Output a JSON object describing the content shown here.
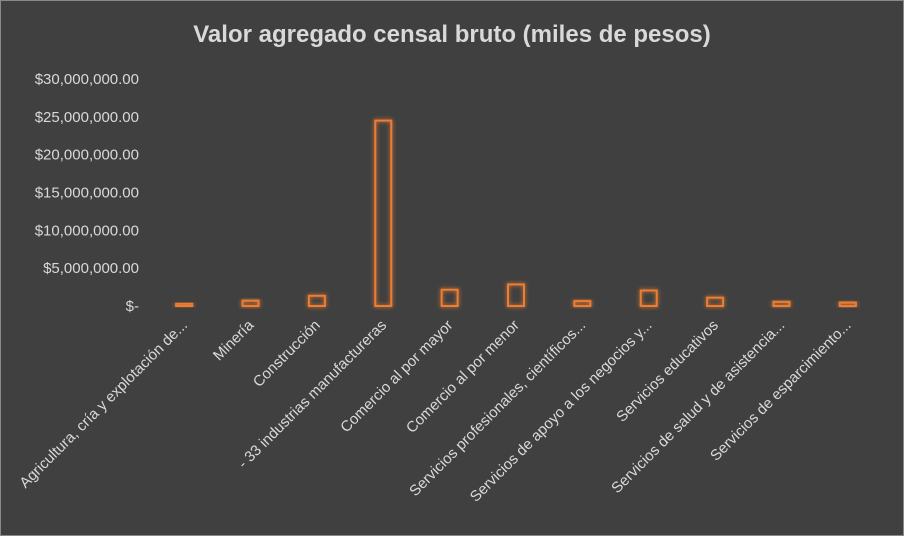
{
  "chart_data": {
    "type": "bar",
    "title": "Valor agregado censal bruto (miles de pesos)",
    "xlabel": "",
    "ylabel": "",
    "ylim": [
      0,
      30000000
    ],
    "y_ticks": [
      "$-",
      "$5,000,000.00",
      "$10,000,000.00",
      "$15,000,000.00",
      "$20,000,000.00",
      "$25,000,000.00",
      "$30,000,000.00"
    ],
    "categories": [
      "Agricultura, cría y explotación de...",
      "Minería",
      "Construcción",
      "- 33 industrias manufactureras",
      "Comercio al por mayor",
      "Comercio al por menor",
      "Servicios profesionales, científicos...",
      "Servicios de apoyo a los negocios y...",
      "Servicios educativos",
      "Servicios de salud y de asistencia...",
      "Servicios de esparcimiento..."
    ],
    "values": [
      300000,
      700000,
      1350000,
      24500000,
      2150000,
      2850000,
      650000,
      2050000,
      1100000,
      550000,
      450000
    ],
    "bar_color": "#ED7D31",
    "background": "#404040",
    "grid": false,
    "legend": "none"
  }
}
